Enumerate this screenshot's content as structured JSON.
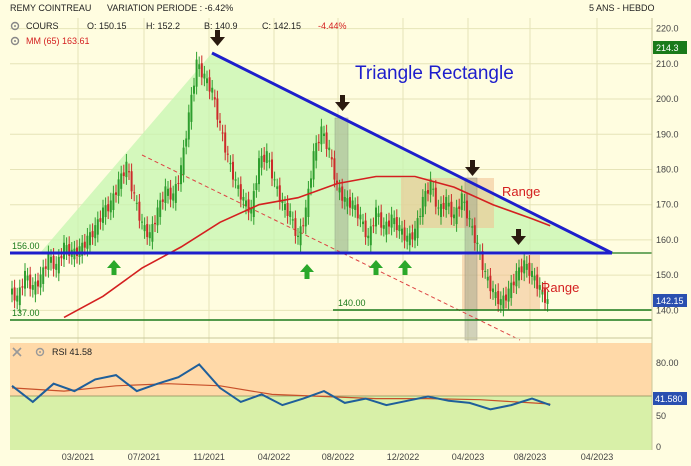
{
  "header": {
    "instrument": "REMY COINTREAU",
    "variation": "VARIATION PERIODE : -6.42%",
    "period": "5 ANS - HEBDO"
  },
  "legend": {
    "cours_label": "COURS",
    "open": "O: 150.15",
    "high": "H: 152.2",
    "low": "B: 140.9",
    "close": "C: 142.15",
    "change": "-4.44%",
    "ma_label": "MM (65) 163.61"
  },
  "annotations": {
    "pattern_title": "Triangle Rectangle",
    "range_upper": "Range",
    "range_lower": "Range",
    "level_156": "156.00",
    "level_140": "140.00",
    "level_137": "137.00"
  },
  "badges": {
    "price_high": "214.3",
    "price_last": "142.15",
    "rsi_last": "41.580"
  },
  "rsi_panel": {
    "label": "RSI 41.58",
    "ticks": [
      "80.00",
      "50",
      "0"
    ]
  },
  "colors": {
    "background": "#fffde0",
    "triangle_fill": "#c6f5b0",
    "triangle_line": "#1e1ecc",
    "candle_up": "#2e9e2e",
    "candle_down": "#cc2a2a",
    "moving_average": "#d42020",
    "support_line": "#1a7a1a",
    "rsi_line": "#1f5f9a",
    "rsi_signal": "#c8502a",
    "rsi_overbought_zone": "#ffd9a8",
    "rsi_oversold_zone": "#d8f0a8",
    "range_box": "#f0c090",
    "arrow_down": "#2a1a10",
    "arrow_up": "#2aa82a"
  },
  "chart_data": {
    "type": "candlestick",
    "x_ticks": [
      "03/2021",
      "07/2021",
      "11/2021",
      "04/2022",
      "08/2022",
      "12/2022",
      "04/2023",
      "08/2023",
      "04/2023"
    ],
    "y_ticks": [
      140,
      150,
      160,
      170,
      180,
      190,
      200,
      210,
      220
    ],
    "ylim": [
      135,
      223
    ],
    "close_series": [
      {
        "x": 0,
        "y": 146
      },
      {
        "x": 3,
        "y": 143
      },
      {
        "x": 6,
        "y": 150
      },
      {
        "x": 9,
        "y": 146
      },
      {
        "x": 12,
        "y": 149
      },
      {
        "x": 15,
        "y": 155
      },
      {
        "x": 18,
        "y": 152
      },
      {
        "x": 21,
        "y": 158
      },
      {
        "x": 24,
        "y": 156
      },
      {
        "x": 27,
        "y": 157
      },
      {
        "x": 30,
        "y": 160
      },
      {
        "x": 33,
        "y": 163
      },
      {
        "x": 36,
        "y": 168
      },
      {
        "x": 39,
        "y": 170
      },
      {
        "x": 42,
        "y": 176
      },
      {
        "x": 45,
        "y": 181
      },
      {
        "x": 48,
        "y": 172
      },
      {
        "x": 51,
        "y": 164
      },
      {
        "x": 54,
        "y": 161
      },
      {
        "x": 57,
        "y": 168
      },
      {
        "x": 60,
        "y": 174
      },
      {
        "x": 63,
        "y": 172
      },
      {
        "x": 66,
        "y": 180
      },
      {
        "x": 69,
        "y": 195
      },
      {
        "x": 72,
        "y": 210
      },
      {
        "x": 75,
        "y": 206
      },
      {
        "x": 78,
        "y": 202
      },
      {
        "x": 81,
        "y": 192
      },
      {
        "x": 84,
        "y": 183
      },
      {
        "x": 87,
        "y": 176
      },
      {
        "x": 90,
        "y": 171
      },
      {
        "x": 93,
        "y": 168
      },
      {
        "x": 96,
        "y": 182
      },
      {
        "x": 99,
        "y": 184
      },
      {
        "x": 102,
        "y": 176
      },
      {
        "x": 105,
        "y": 170
      },
      {
        "x": 108,
        "y": 167
      },
      {
        "x": 111,
        "y": 160
      },
      {
        "x": 114,
        "y": 168
      },
      {
        "x": 117,
        "y": 184
      },
      {
        "x": 120,
        "y": 191
      },
      {
        "x": 123,
        "y": 185
      },
      {
        "x": 126,
        "y": 175
      },
      {
        "x": 129,
        "y": 171
      },
      {
        "x": 132,
        "y": 170
      },
      {
        "x": 135,
        "y": 166
      },
      {
        "x": 138,
        "y": 160
      },
      {
        "x": 141,
        "y": 168
      },
      {
        "x": 144,
        "y": 163
      },
      {
        "x": 147,
        "y": 166
      },
      {
        "x": 150,
        "y": 163
      },
      {
        "x": 153,
        "y": 160
      },
      {
        "x": 156,
        "y": 162
      },
      {
        "x": 159,
        "y": 171
      },
      {
        "x": 162,
        "y": 176
      },
      {
        "x": 165,
        "y": 168
      },
      {
        "x": 168,
        "y": 171
      },
      {
        "x": 171,
        "y": 166
      },
      {
        "x": 174,
        "y": 172
      },
      {
        "x": 177,
        "y": 165
      },
      {
        "x": 180,
        "y": 158
      },
      {
        "x": 183,
        "y": 150
      },
      {
        "x": 186,
        "y": 145
      },
      {
        "x": 189,
        "y": 142
      },
      {
        "x": 192,
        "y": 145
      },
      {
        "x": 195,
        "y": 150
      },
      {
        "x": 198,
        "y": 153
      },
      {
        "x": 201,
        "y": 150
      },
      {
        "x": 204,
        "y": 146
      },
      {
        "x": 207,
        "y": 142
      }
    ],
    "moving_average_65": [
      {
        "x": 20,
        "y": 138
      },
      {
        "x": 35,
        "y": 144
      },
      {
        "x": 50,
        "y": 152
      },
      {
        "x": 65,
        "y": 158
      },
      {
        "x": 80,
        "y": 165
      },
      {
        "x": 95,
        "y": 170
      },
      {
        "x": 110,
        "y": 172
      },
      {
        "x": 125,
        "y": 176
      },
      {
        "x": 140,
        "y": 178
      },
      {
        "x": 155,
        "y": 178
      },
      {
        "x": 170,
        "y": 175
      },
      {
        "x": 185,
        "y": 170
      },
      {
        "x": 200,
        "y": 166
      },
      {
        "x": 207,
        "y": 164
      }
    ],
    "rsi_series": [
      {
        "x": 0,
        "y": 60
      },
      {
        "x": 8,
        "y": 45
      },
      {
        "x": 16,
        "y": 62
      },
      {
        "x": 24,
        "y": 55
      },
      {
        "x": 32,
        "y": 66
      },
      {
        "x": 40,
        "y": 70
      },
      {
        "x": 48,
        "y": 55
      },
      {
        "x": 56,
        "y": 62
      },
      {
        "x": 64,
        "y": 68
      },
      {
        "x": 72,
        "y": 80
      },
      {
        "x": 80,
        "y": 58
      },
      {
        "x": 88,
        "y": 45
      },
      {
        "x": 96,
        "y": 52
      },
      {
        "x": 104,
        "y": 42
      },
      {
        "x": 112,
        "y": 48
      },
      {
        "x": 120,
        "y": 55
      },
      {
        "x": 128,
        "y": 44
      },
      {
        "x": 136,
        "y": 48
      },
      {
        "x": 144,
        "y": 42
      },
      {
        "x": 152,
        "y": 46
      },
      {
        "x": 160,
        "y": 50
      },
      {
        "x": 168,
        "y": 46
      },
      {
        "x": 176,
        "y": 44
      },
      {
        "x": 184,
        "y": 38
      },
      {
        "x": 192,
        "y": 42
      },
      {
        "x": 200,
        "y": 48
      },
      {
        "x": 207,
        "y": 42
      }
    ],
    "rsi_signal": [
      {
        "x": 0,
        "y": 58
      },
      {
        "x": 20,
        "y": 55
      },
      {
        "x": 40,
        "y": 60
      },
      {
        "x": 60,
        "y": 62
      },
      {
        "x": 80,
        "y": 60
      },
      {
        "x": 100,
        "y": 52
      },
      {
        "x": 120,
        "y": 50
      },
      {
        "x": 140,
        "y": 48
      },
      {
        "x": 160,
        "y": 48
      },
      {
        "x": 180,
        "y": 47
      },
      {
        "x": 200,
        "y": 44
      },
      {
        "x": 207,
        "y": 43
      }
    ],
    "rsi_ylim": [
      0,
      100
    ],
    "grid": true,
    "horizontal_levels": [
      156,
      140,
      137
    ]
  }
}
